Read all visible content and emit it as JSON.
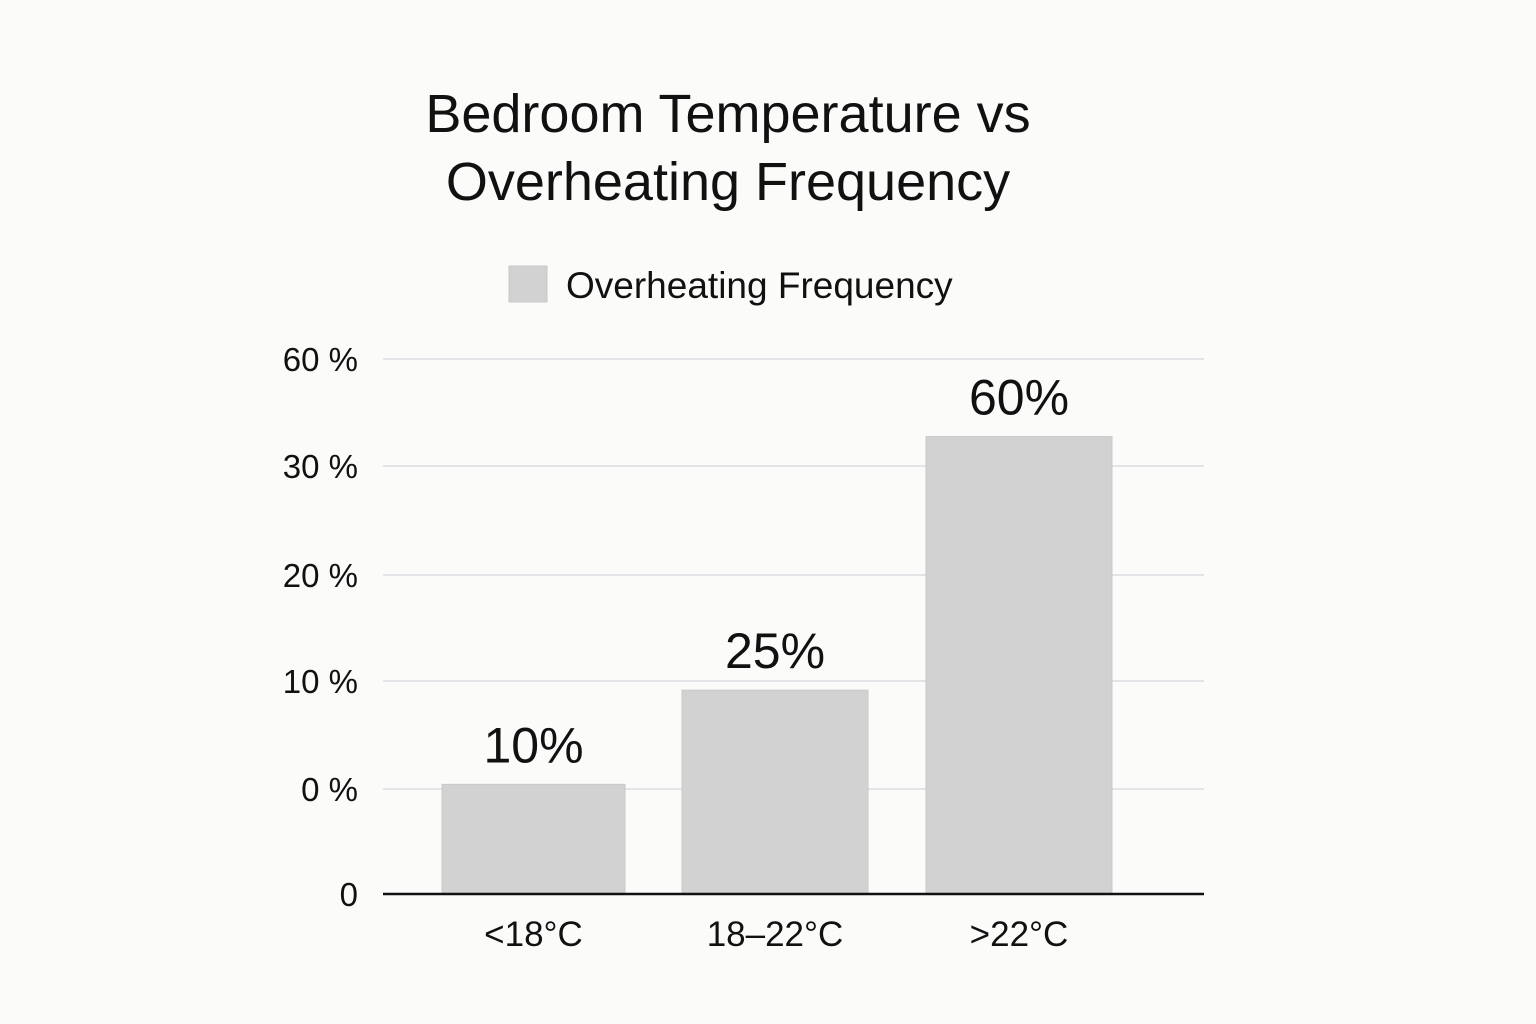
{
  "chart_data": {
    "type": "bar",
    "title": [
      "Bedroom Temperature vs",
      "Overheating Frequency"
    ],
    "categories": [
      "<18°C",
      "18–22°C",
      ">22°C"
    ],
    "series": [
      {
        "name": "Overheating Frequency",
        "values": [
          10,
          25,
          60
        ],
        "data_labels": [
          "10%",
          "25%",
          "60%"
        ],
        "color": "#d2d2d2"
      }
    ],
    "y_tick_labels": [
      "0",
      "0 %",
      "10 %",
      "20 %",
      "30 %",
      "60 %"
    ],
    "grid": true,
    "legend_position": "top",
    "axis_color": "#111111",
    "grid_color": "#d9dcdf"
  }
}
